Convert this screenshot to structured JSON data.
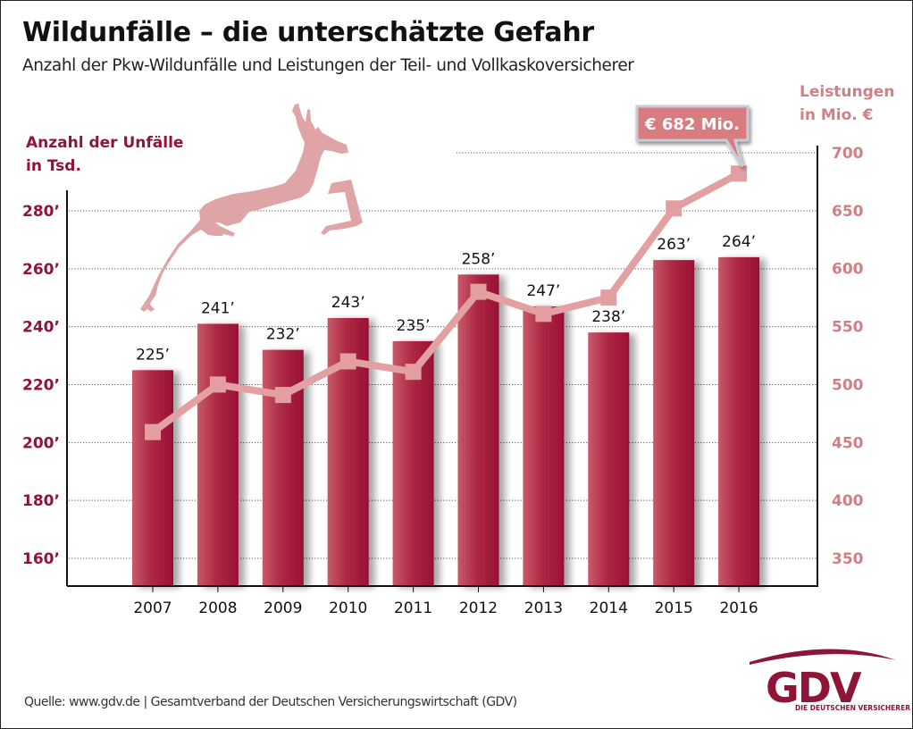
{
  "header": {
    "title": "Wildunfälle – die unterschätzte Gefahr",
    "subtitle": "Anzahl der Pkw-Wildunfälle und Leistungen der Teil- und Vollkaskoversicherer"
  },
  "chart_data": {
    "type": "bar",
    "title": "Wildunfälle – die unterschätzte Gefahr",
    "subtitle": "Anzahl der Pkw-Wildunfälle und Leistungen der Teil- und Vollkaskoversicherer",
    "categories": [
      "2007",
      "2008",
      "2009",
      "2010",
      "2011",
      "2012",
      "2013",
      "2014",
      "2015",
      "2016"
    ],
    "series": [
      {
        "name": "Anzahl der Unfälle in Tsd.",
        "type": "bar",
        "axis": "left",
        "values": [
          225,
          241,
          232,
          243,
          235,
          258,
          247,
          238,
          263,
          264
        ],
        "labels": [
          "225’",
          "241’",
          "232’",
          "243’",
          "235’",
          "258’",
          "247’",
          "238’",
          "263’",
          "264’"
        ],
        "color": "#a3173a"
      },
      {
        "name": "Leistungen in Mio. €",
        "type": "line",
        "axis": "right",
        "values": [
          459,
          500,
          491,
          520,
          511,
          580,
          561,
          575,
          652,
          682
        ],
        "color": "#e2a0a2"
      }
    ],
    "y_left": {
      "label_line1": "Anzahl der Unfälle",
      "label_line2": "in Tsd.",
      "ticks": [
        160,
        180,
        200,
        220,
        240,
        260,
        280
      ],
      "tick_labels": [
        "160’",
        "180’",
        "200’",
        "220’",
        "240’",
        "260’",
        "280’"
      ],
      "range": [
        150.4,
        290
      ]
    },
    "y_right": {
      "label_line1": "Leistungen",
      "label_line2": "in Mio. €",
      "ticks": [
        350,
        400,
        450,
        500,
        550,
        600,
        650,
        700
      ],
      "tick_labels": [
        "350",
        "400",
        "450",
        "500",
        "550",
        "600",
        "650",
        "700"
      ],
      "range": [
        326,
        700
      ]
    },
    "annotation": {
      "text": "€ 682 Mio.",
      "category": "2016"
    },
    "grid": true,
    "grid_style": "dotted"
  },
  "footer": {
    "source": "Quelle: www.gdv.de | Gesamtverband der Deutschen Versicherungswirtschaft (GDV)"
  },
  "logo": {
    "name": "GDV",
    "tagline": "DIE DEUTSCHEN VERSICHERER"
  },
  "colors": {
    "bar": "#a3173a",
    "line": "#e2a0a2",
    "left_axis_text": "#8e1537",
    "right_axis_text": "#d07f82",
    "callout": "#d97c80",
    "deer": "#dea4a6"
  }
}
